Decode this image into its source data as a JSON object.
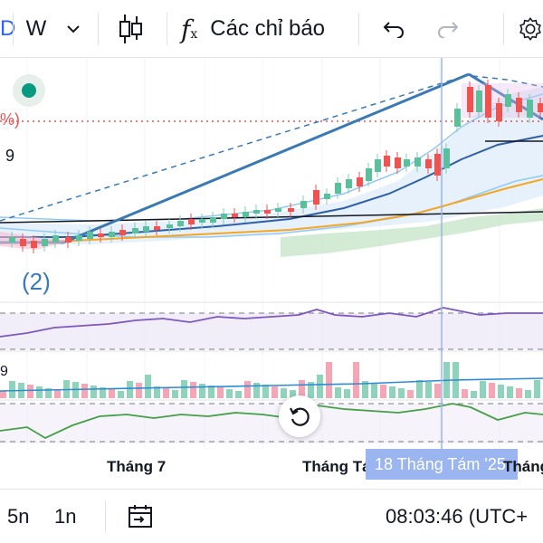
{
  "toolbar": {
    "interval_partial": "D",
    "interval_label": "W",
    "indicators_label": "Các chỉ báo",
    "icons": [
      "chevron-down-icon",
      "candles-icon",
      "fx-icon",
      "undo-icon",
      "redo-icon",
      "gear-icon"
    ]
  },
  "chart": {
    "pane_label_percent": "%)",
    "pane_label_nine": "9",
    "wave_label": "(2)",
    "rsi_level_label": "9",
    "colors": {
      "up": "#7fcfb6",
      "down": "#ef5350",
      "wave": "#3a79b4",
      "ma_orange": "#f5a623",
      "ma_blue": "#2d5ea8",
      "cloud": "#c8e6c9",
      "rsi": "#7e57c2",
      "osc": "#43a047"
    }
  },
  "time_axis": {
    "labels": [
      "Tháng 7",
      "Tháng Tám",
      "Tháng"
    ],
    "crosshair_date": "18 Tháng Tám '25"
  },
  "bottombar": {
    "range_5n": "5n",
    "range_1n": "1n",
    "time": "08:03:46 (UTC+",
    "icons": [
      "go-to-date-icon"
    ]
  }
}
